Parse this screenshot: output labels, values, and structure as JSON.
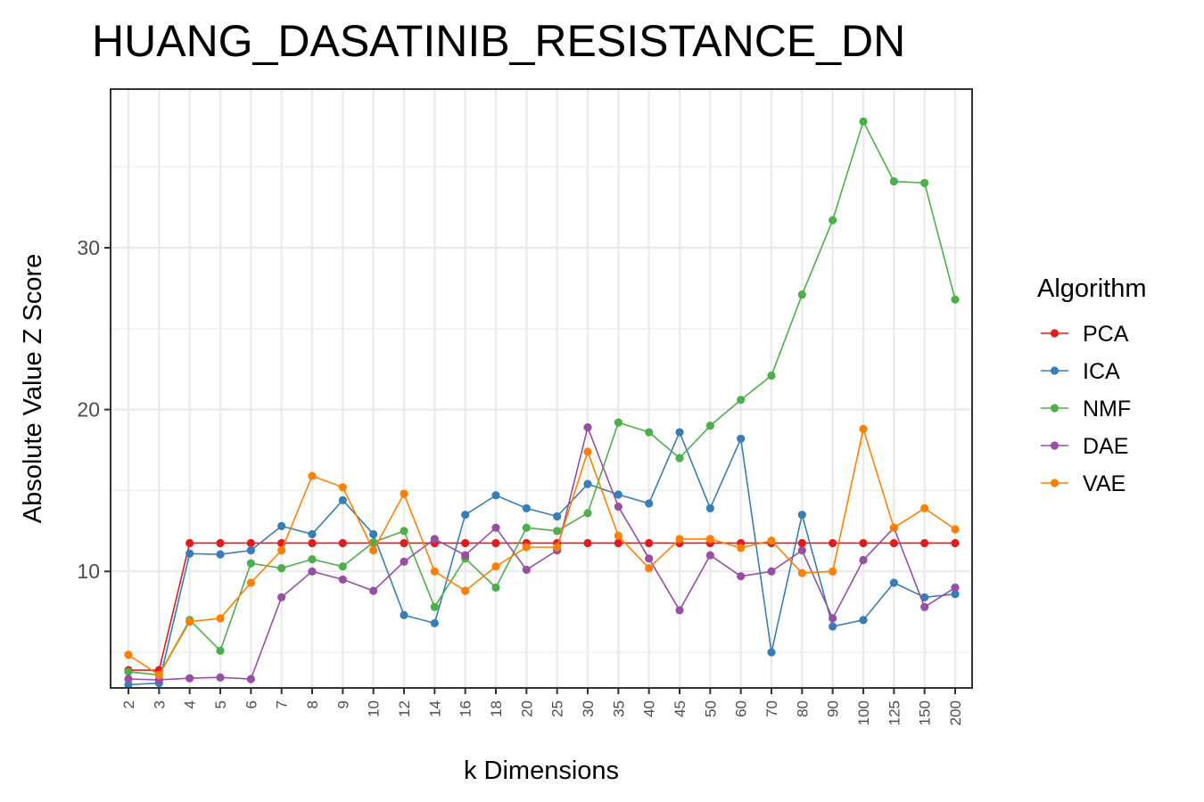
{
  "chart_data": {
    "type": "line",
    "title": "HUANG_DASATINIB_RESISTANCE_DN",
    "xlabel": "k Dimensions",
    "ylabel": "Absolute Value Z Score",
    "categories": [
      "2",
      "3",
      "4",
      "5",
      "6",
      "7",
      "8",
      "9",
      "10",
      "12",
      "14",
      "16",
      "18",
      "20",
      "25",
      "30",
      "35",
      "40",
      "45",
      "50",
      "60",
      "70",
      "80",
      "90",
      "100",
      "125",
      "150",
      "200"
    ],
    "ylim": [
      2.8,
      39.8
    ],
    "yticks": [
      10,
      20,
      30
    ],
    "grid": true,
    "legend": {
      "title": "Algorithm",
      "position": "right"
    },
    "series": [
      {
        "name": "PCA",
        "color": "#E41A1C",
        "values": [
          3.9,
          3.9,
          11.75,
          11.75,
          11.75,
          11.75,
          11.75,
          11.75,
          11.75,
          11.75,
          11.75,
          11.75,
          11.75,
          11.75,
          11.75,
          11.75,
          11.75,
          11.75,
          11.75,
          11.75,
          11.75,
          11.75,
          11.75,
          11.75,
          11.75,
          11.75,
          11.75,
          11.75
        ]
      },
      {
        "name": "ICA",
        "color": "#377EB8",
        "values": [
          3.0,
          3.1,
          11.1,
          11.05,
          11.3,
          12.8,
          12.3,
          14.4,
          12.3,
          7.3,
          6.8,
          13.5,
          14.7,
          13.9,
          13.4,
          15.4,
          14.75,
          14.2,
          18.6,
          13.9,
          18.2,
          5.0,
          13.5,
          6.6,
          7.0,
          9.3,
          8.4,
          8.6
        ]
      },
      {
        "name": "NMF",
        "color": "#4DAF4A",
        "values": [
          3.8,
          3.6,
          7.0,
          5.1,
          10.5,
          10.2,
          10.75,
          10.3,
          11.8,
          12.5,
          7.8,
          10.8,
          9.0,
          12.7,
          12.5,
          13.6,
          19.2,
          18.6,
          17.0,
          19.0,
          20.6,
          22.1,
          27.1,
          31.7,
          37.8,
          34.1,
          34.0,
          26.8
        ]
      },
      {
        "name": "DAE",
        "color": "#984EA3",
        "values": [
          3.35,
          3.3,
          3.4,
          3.45,
          3.35,
          8.4,
          10.0,
          9.5,
          8.8,
          10.6,
          12.0,
          11.0,
          12.7,
          10.1,
          11.3,
          18.9,
          14.0,
          10.8,
          7.6,
          11.0,
          9.7,
          10.0,
          11.3,
          7.1,
          10.7,
          12.7,
          7.8,
          9.0
        ]
      },
      {
        "name": "VAE",
        "color": "#FF7F00",
        "values": [
          4.85,
          3.6,
          6.9,
          7.1,
          9.3,
          11.3,
          15.9,
          15.2,
          11.3,
          14.8,
          10.0,
          8.8,
          10.3,
          11.5,
          11.5,
          17.4,
          12.2,
          10.2,
          12.0,
          12.0,
          11.45,
          11.9,
          9.9,
          10.0,
          18.8,
          12.7,
          13.9,
          12.6
        ]
      }
    ]
  }
}
